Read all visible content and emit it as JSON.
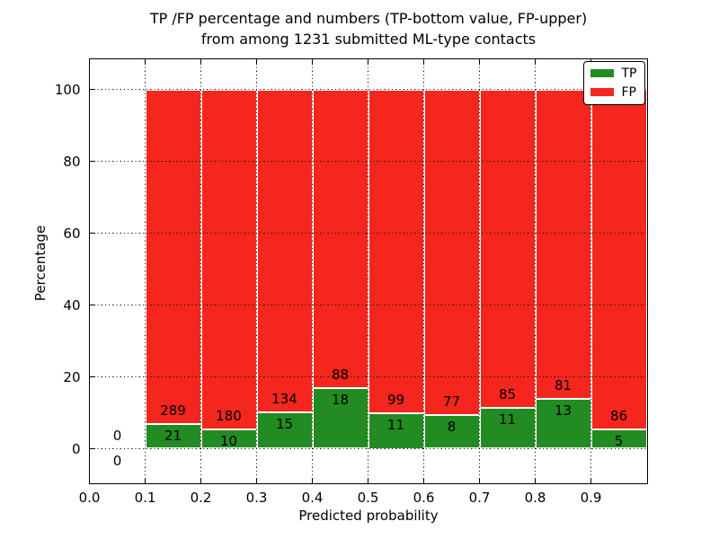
{
  "figure": {
    "title_line1": "TP /FP percentage and numbers (TP-bottom value, FP-upper)",
    "title_line2": "from among 1231 submitted ML-type contacts"
  },
  "chart_data": {
    "type": "bar",
    "stacked": true,
    "normalization": "each bin scaled to 100% (TP% bottom segment, FP% top segment); labels show raw counts",
    "title": "TP /FP percentage and numbers (TP-bottom value, FP-upper) from among 1231 submitted ML-type contacts",
    "xlabel": "Predicted probability",
    "ylabel": "Percentage",
    "total_contacts": 1231,
    "bin_width": 0.1,
    "bin_starts": [
      0.0,
      0.1,
      0.2,
      0.3,
      0.4,
      0.5,
      0.6,
      0.7,
      0.8,
      0.9
    ],
    "series": [
      {
        "name": "TP",
        "color": "#228b22",
        "counts": [
          0,
          21,
          10,
          15,
          18,
          11,
          8,
          11,
          13,
          5
        ]
      },
      {
        "name": "FP",
        "color": "#f5261d",
        "counts": [
          0,
          289,
          180,
          134,
          88,
          99,
          77,
          85,
          81,
          86
        ]
      }
    ],
    "x_tick_values": [
      0,
      0.1,
      0.2,
      0.3,
      0.4,
      0.5,
      0.6,
      0.7,
      0.8,
      0.9
    ],
    "x_tick_labels": [
      "0.0",
      "0.1",
      "0.2",
      "0.3",
      "0.4",
      "0.5",
      "0.6",
      "0.7",
      "0.8",
      "0.9"
    ],
    "y_tick_values": [
      0,
      20,
      40,
      60,
      80,
      100
    ],
    "y_tick_labels": [
      "0",
      "20",
      "40",
      "60",
      "80",
      "100"
    ],
    "xlim": [
      0,
      1.0
    ],
    "ylim": [
      -9.5,
      108.5
    ],
    "grid": true,
    "grid_style": "dotted",
    "legend": {
      "position": "upper right",
      "entries": [
        {
          "label": "TP",
          "color": "#228b22"
        },
        {
          "label": "FP",
          "color": "#f5261d"
        }
      ]
    }
  }
}
